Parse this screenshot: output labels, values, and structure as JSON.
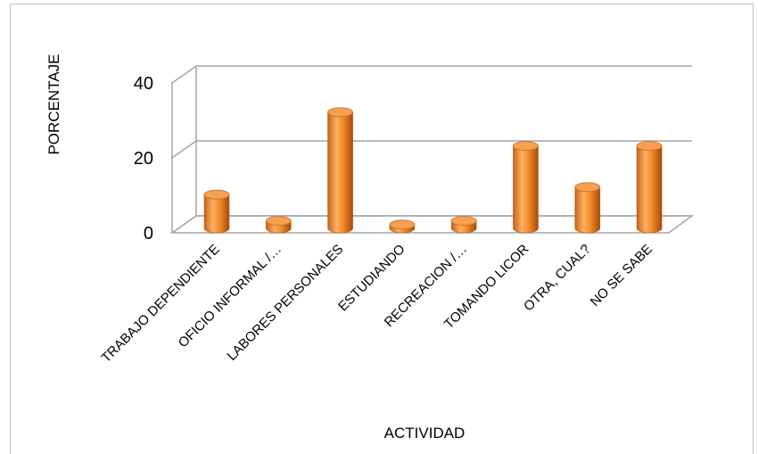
{
  "chart_data": {
    "type": "bar",
    "style": "3d-cylinder",
    "categories": [
      "TRABAJO DEPENDIENTE",
      "OFICIO INFORMAL /…",
      "LABORES PERSONALES",
      "ESTUDIANDO",
      "RECREACION /…",
      "TOMANDO LICOR",
      "OTRA, CUAL?",
      "NO SE SABE"
    ],
    "values": [
      9,
      2,
      31,
      1,
      2,
      22,
      11,
      22
    ],
    "title": "",
    "xlabel": "ACTIVIDAD",
    "ylabel": "PORCENTAJE",
    "ylim": [
      0,
      40
    ],
    "yticks": [
      0,
      20,
      40
    ],
    "grid": true,
    "legend": "none",
    "bar_color": "#f28e2b",
    "bar_dark": "#c45a10",
    "bar_light": "#ffc17a"
  }
}
